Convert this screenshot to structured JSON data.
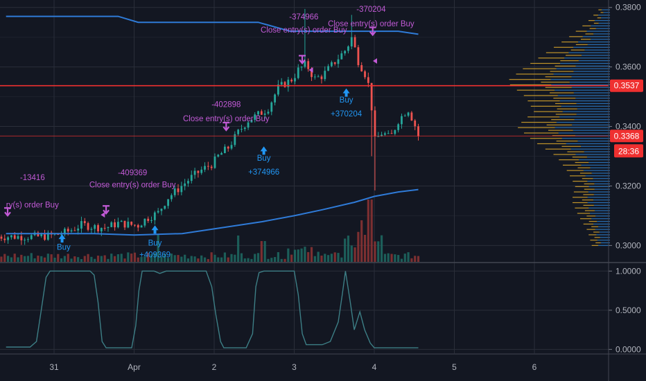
{
  "colors": {
    "background": "#131722",
    "grid": "#2a2e39",
    "up": "#26a69a",
    "down": "#ef5350",
    "ma": "#2f7bd8",
    "strategy_label": "#c25ad6",
    "buy_label": "#2196f3",
    "price_line": "#ef3030",
    "oscillator": "#3d7f86",
    "profile_up": "#2b78c2",
    "profile_down": "#d4a22b"
  },
  "chart_data": [
    {
      "type": "candlestick",
      "title": "",
      "xlabel": "",
      "ylabel": "",
      "ylim": [
        0.2945,
        0.3825
      ],
      "y_ticks": [
        "0.3800",
        "0.3600",
        "0.3400",
        "0.3200",
        "0.3000"
      ],
      "x_ticks": [
        "31",
        "Apr",
        "2",
        "3",
        "4",
        "5",
        "6"
      ],
      "grid": true,
      "price_lines": [
        {
          "value": 0.3537,
          "label": "0.3537",
          "style": "solid"
        },
        {
          "value": 0.3368,
          "label": "0.3368",
          "style": "thin"
        }
      ],
      "countdown_label": "28:36",
      "series": [
        {
          "name": "",
          "kind": "price",
          "path": [
            [
              -0.15,
              0.303
            ],
            [
              0.0,
              0.3035
            ],
            [
              0.1,
              0.304
            ],
            [
              0.2,
              0.305
            ],
            [
              0.35,
              0.307
            ],
            [
              0.5,
              0.3062
            ],
            [
              0.65,
              0.306
            ],
            [
              0.8,
              0.3075
            ],
            [
              0.95,
              0.307
            ],
            [
              1.05,
              0.3068
            ],
            [
              1.15,
              0.309
            ],
            [
              1.3,
              0.311
            ],
            [
              1.42,
              0.316
            ],
            [
              1.55,
              0.319
            ],
            [
              1.72,
              0.323
            ],
            [
              1.85,
              0.3255
            ],
            [
              1.98,
              0.3275
            ],
            [
              2.05,
              0.33
            ],
            [
              2.18,
              0.333
            ],
            [
              2.3,
              0.338
            ],
            [
              2.42,
              0.342
            ],
            [
              2.55,
              0.344
            ],
            [
              2.67,
              0.346
            ],
            [
              2.8,
              0.353
            ],
            [
              2.98,
              0.356
            ],
            [
              3.05,
              0.359
            ],
            [
              3.15,
              0.361
            ],
            [
              3.25,
              0.356
            ],
            [
              3.35,
              0.357
            ],
            [
              3.45,
              0.36
            ],
            [
              3.55,
              0.363
            ],
            [
              3.65,
              0.366
            ],
            [
              3.72,
              0.37
            ],
            [
              3.8,
              0.362
            ],
            [
              3.88,
              0.358
            ],
            [
              3.95,
              0.352
            ],
            [
              4.0,
              0.335
            ],
            [
              4.1,
              0.338
            ],
            [
              4.2,
              0.336
            ],
            [
              4.3,
              0.342
            ],
            [
              4.42,
              0.346
            ],
            [
              4.5,
              0.341
            ],
            [
              4.55,
              0.3368
            ]
          ]
        },
        {
          "name": "",
          "kind": "moving_average_upper",
          "path": [
            [
              -0.6,
              0.377
            ],
            [
              0.8,
              0.377
            ],
            [
              1.05,
              0.375
            ],
            [
              2.55,
              0.375
            ],
            [
              2.95,
              0.372
            ],
            [
              4.3,
              0.372
            ],
            [
              4.55,
              0.371
            ]
          ]
        },
        {
          "name": "",
          "kind": "moving_average_lower",
          "path": [
            [
              -0.6,
              0.304
            ],
            [
              0.5,
              0.304
            ],
            [
              1.0,
              0.3035
            ],
            [
              1.6,
              0.304
            ],
            [
              2.1,
              0.306
            ],
            [
              2.6,
              0.308
            ],
            [
              3.0,
              0.31
            ],
            [
              3.35,
              0.312
            ],
            [
              3.75,
              0.3145
            ],
            [
              4.0,
              0.3165
            ],
            [
              4.3,
              0.318
            ],
            [
              4.55,
              0.3188
            ]
          ]
        }
      ],
      "annotations": [
        {
          "text": "-13416",
          "x": -0.27,
          "y": 0.322,
          "kind": "strategy"
        },
        {
          "text": "ry(s) order Buy",
          "x": -0.27,
          "y": 0.3128,
          "kind": "strategy"
        },
        {
          "text": "Buy",
          "x": 0.12,
          "y": 0.2986,
          "kind": "buy"
        },
        {
          "text": "-409369",
          "x": 0.98,
          "y": 0.3236,
          "kind": "strategy"
        },
        {
          "text": "Close entry(s) order Buy",
          "x": 0.98,
          "y": 0.3195,
          "kind": "strategy"
        },
        {
          "text": "Buy",
          "x": 1.26,
          "y": 0.3,
          "kind": "buy"
        },
        {
          "text": "+409369",
          "x": 1.26,
          "y": 0.296,
          "kind": "buy"
        },
        {
          "text": "-402898",
          "x": 2.15,
          "y": 0.3465,
          "kind": "strategy"
        },
        {
          "text": "Close entry(s) order Buy",
          "x": 2.15,
          "y": 0.3418,
          "kind": "strategy"
        },
        {
          "text": "Buy",
          "x": 2.62,
          "y": 0.3285,
          "kind": "buy"
        },
        {
          "text": "+374966",
          "x": 2.62,
          "y": 0.3238,
          "kind": "buy"
        },
        {
          "text": "-374966",
          "x": 3.12,
          "y": 0.376,
          "kind": "strategy"
        },
        {
          "text": "Close entry(s) order Buy",
          "x": 3.12,
          "y": 0.3716,
          "kind": "strategy"
        },
        {
          "text": "-370204",
          "x": 3.96,
          "y": 0.3785,
          "kind": "strategy"
        },
        {
          "text": "Close entry(s) order Buy",
          "x": 3.96,
          "y": 0.3736,
          "kind": "strategy"
        },
        {
          "text": "Buy",
          "x": 3.65,
          "y": 0.348,
          "kind": "buy"
        },
        {
          "text": "+370204",
          "x": 3.65,
          "y": 0.3434,
          "kind": "buy"
        }
      ]
    },
    {
      "type": "line",
      "title": "",
      "xlabel": "",
      "ylabel": "",
      "ylim": [
        -0.05,
        1.1
      ],
      "y_ticks": [
        "1.0000",
        "0.5000",
        "0.0000"
      ],
      "grid": true,
      "series": [
        {
          "name": "",
          "path": [
            [
              -0.6,
              0.03
            ],
            [
              -0.3,
              0.03
            ],
            [
              -0.22,
              0.1
            ],
            [
              -0.16,
              0.5
            ],
            [
              -0.1,
              0.92
            ],
            [
              -0.05,
              1.0
            ],
            [
              0.45,
              1.0
            ],
            [
              0.5,
              0.95
            ],
            [
              0.55,
              0.6
            ],
            [
              0.6,
              0.1
            ],
            [
              0.65,
              0.02
            ],
            [
              0.97,
              0.02
            ],
            [
              1.02,
              0.3
            ],
            [
              1.06,
              0.75
            ],
            [
              1.1,
              1.0
            ],
            [
              1.25,
              1.0
            ],
            [
              1.32,
              0.97
            ],
            [
              1.4,
              1.0
            ],
            [
              1.9,
              1.0
            ],
            [
              1.97,
              0.8
            ],
            [
              2.02,
              0.45
            ],
            [
              2.08,
              0.1
            ],
            [
              2.12,
              0.02
            ],
            [
              2.4,
              0.02
            ],
            [
              2.48,
              0.2
            ],
            [
              2.52,
              0.8
            ],
            [
              2.56,
              0.98
            ],
            [
              2.62,
              1.0
            ],
            [
              3.0,
              1.0
            ],
            [
              3.05,
              0.7
            ],
            [
              3.1,
              0.2
            ],
            [
              3.15,
              0.06
            ],
            [
              3.35,
              0.06
            ],
            [
              3.45,
              0.1
            ],
            [
              3.55,
              0.35
            ],
            [
              3.6,
              0.7
            ],
            [
              3.64,
              1.0
            ],
            [
              3.7,
              0.6
            ],
            [
              3.75,
              0.25
            ],
            [
              3.82,
              0.48
            ],
            [
              3.88,
              0.25
            ],
            [
              3.95,
              0.08
            ],
            [
              4.0,
              0.02
            ],
            [
              4.55,
              0.02
            ]
          ]
        }
      ]
    },
    {
      "type": "bar",
      "title": "",
      "xlabel": "",
      "ylabel": "",
      "ylim": [
        0,
        1
      ],
      "orientation": "horizontal",
      "note_values": "relative volume per price level",
      "price_levels": [
        0.3,
        0.305,
        0.31,
        0.315,
        0.32,
        0.325,
        0.33,
        0.335,
        0.34,
        0.345,
        0.35,
        0.355,
        0.36,
        0.365,
        0.37,
        0.375,
        0.38
      ],
      "series": [
        {
          "name": "",
          "kind": "profile_up",
          "values": [
            0.18,
            0.22,
            0.3,
            0.35,
            0.32,
            0.4,
            0.5,
            0.7,
            0.85,
            0.72,
            0.78,
            0.92,
            0.8,
            0.62,
            0.42,
            0.25,
            0.1
          ]
        },
        {
          "name": "",
          "kind": "profile_down",
          "values": [
            0.12,
            0.15,
            0.22,
            0.28,
            0.25,
            0.3,
            0.38,
            0.55,
            0.68,
            0.52,
            0.6,
            0.78,
            0.58,
            0.4,
            0.25,
            0.12,
            0.05
          ]
        }
      ]
    }
  ]
}
